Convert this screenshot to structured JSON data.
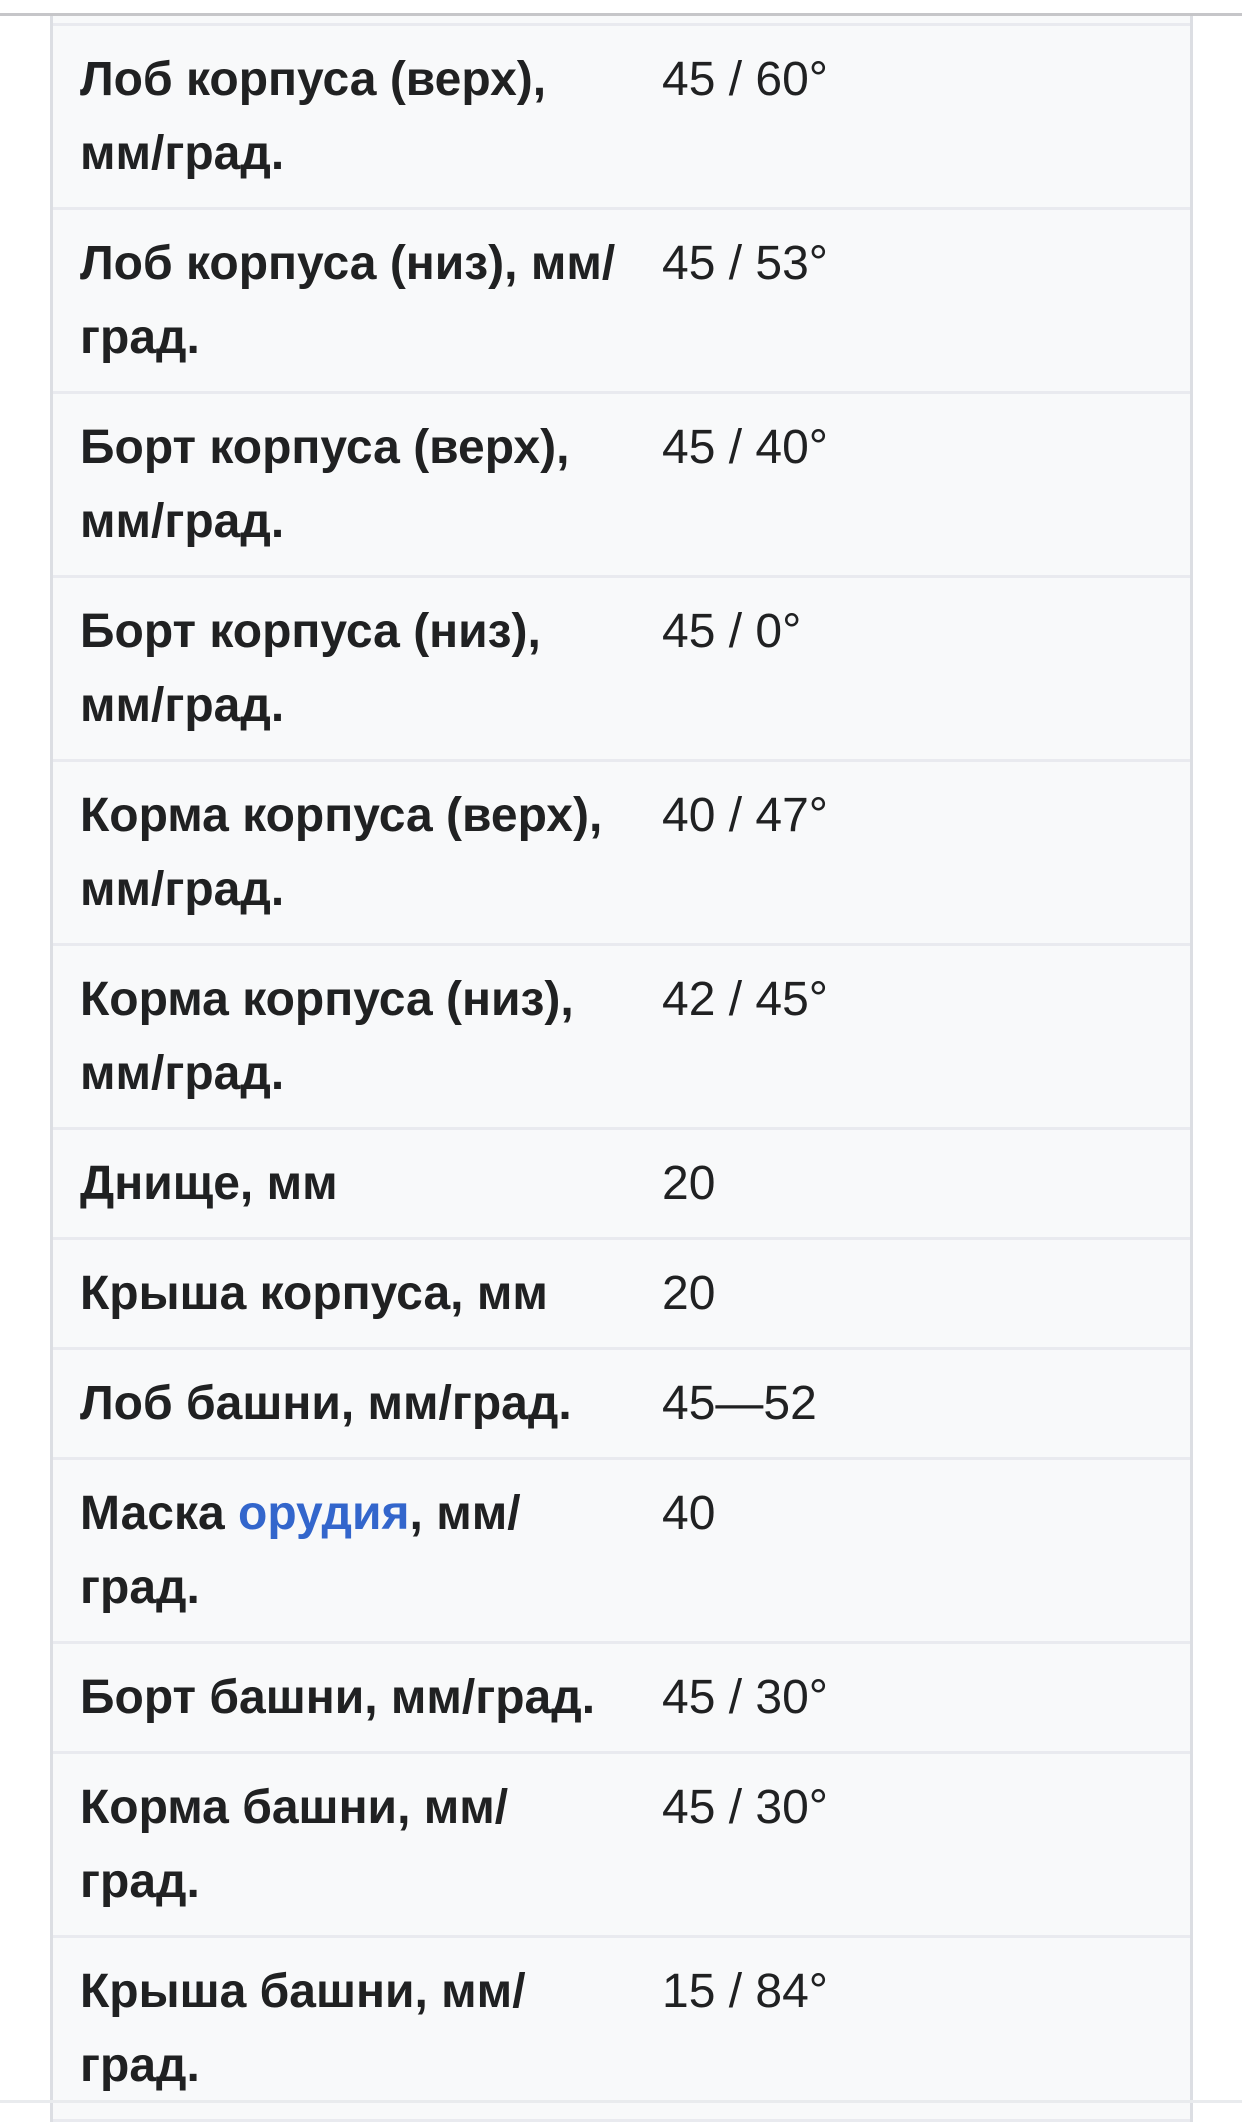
{
  "page": {
    "background": "#ffffff",
    "top_rule_color": "#c6c6c9",
    "bottom_rule_color": "#e9ebee"
  },
  "table": {
    "background": "#f8f9fa",
    "row_border_color": "#e9eaef",
    "side_border_color": "#dcdee3",
    "text_color": "#202122",
    "link_color": "#3366cc",
    "rows": [
      {
        "label_lines": [
          [
            {
              "text": "Лоб корпуса (верх),",
              "link": false
            }
          ],
          [
            {
              "text": "мм/град.",
              "link": false
            }
          ]
        ],
        "value": "45 / 60°"
      },
      {
        "label_lines": [
          [
            {
              "text": "Лоб корпуса (низ), мм/",
              "link": false
            }
          ],
          [
            {
              "text": "град.",
              "link": false
            }
          ]
        ],
        "value": "45 / 53°"
      },
      {
        "label_lines": [
          [
            {
              "text": "Борт корпуса (верх),",
              "link": false
            }
          ],
          [
            {
              "text": "мм/град.",
              "link": false
            }
          ]
        ],
        "value": "45 / 40°"
      },
      {
        "label_lines": [
          [
            {
              "text": "Борт корпуса (низ),",
              "link": false
            }
          ],
          [
            {
              "text": "мм/град.",
              "link": false
            }
          ]
        ],
        "value": "45 / 0°"
      },
      {
        "label_lines": [
          [
            {
              "text": "Корма корпуса (верх),",
              "link": false
            }
          ],
          [
            {
              "text": "мм/град.",
              "link": false
            }
          ]
        ],
        "value": "40 / 47°"
      },
      {
        "label_lines": [
          [
            {
              "text": "Корма корпуса (низ),",
              "link": false
            }
          ],
          [
            {
              "text": "мм/град.",
              "link": false
            }
          ]
        ],
        "value": "42 / 45°"
      },
      {
        "label_lines": [
          [
            {
              "text": "Днище, мм",
              "link": false
            }
          ]
        ],
        "value": "20"
      },
      {
        "label_lines": [
          [
            {
              "text": "Крыша корпуса, мм",
              "link": false
            }
          ]
        ],
        "value": "20"
      },
      {
        "label_lines": [
          [
            {
              "text": "Лоб башни, мм/град.",
              "link": false
            }
          ]
        ],
        "value": "45—52"
      },
      {
        "label_lines": [
          [
            {
              "text": "Маска ",
              "link": false
            },
            {
              "text": "орудия",
              "link": true
            },
            {
              "text": ", мм/",
              "link": false
            }
          ],
          [
            {
              "text": "град.",
              "link": false
            }
          ]
        ],
        "value": "40"
      },
      {
        "label_lines": [
          [
            {
              "text": "Борт башни, мм/град.",
              "link": false
            }
          ]
        ],
        "value": "45 / 30°"
      },
      {
        "label_lines": [
          [
            {
              "text": "Корма башни, мм/",
              "link": false
            }
          ],
          [
            {
              "text": "град.",
              "link": false
            }
          ]
        ],
        "value": "45 / 30°"
      },
      {
        "label_lines": [
          [
            {
              "text": "Крыша башни, мм/",
              "link": false
            }
          ],
          [
            {
              "text": "град.",
              "link": false
            }
          ]
        ],
        "value": "15 / 84°"
      }
    ]
  }
}
